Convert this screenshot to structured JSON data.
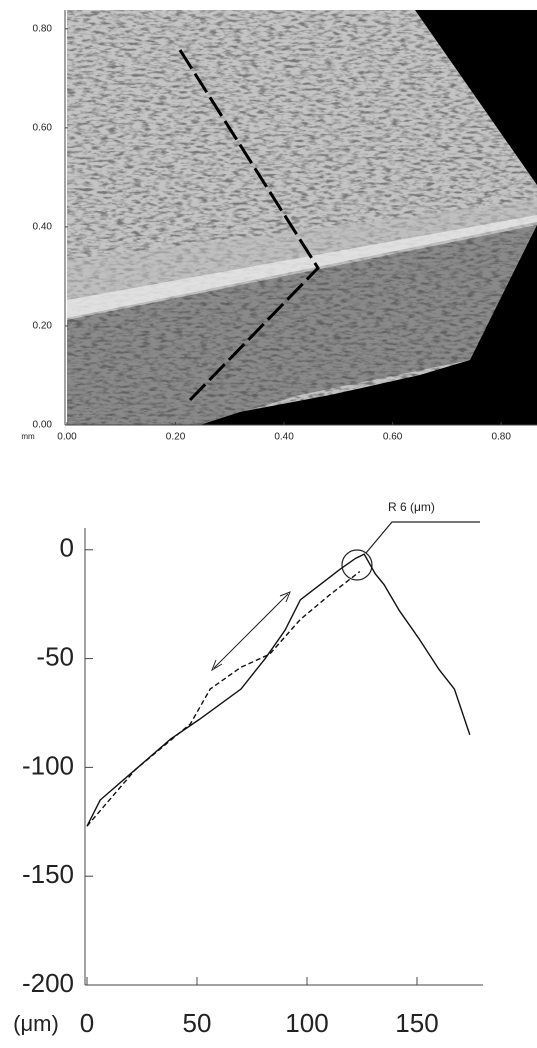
{
  "chart_data": [
    {
      "type": "image",
      "x_unit": "mm",
      "xlim": [
        0,
        0.866
      ],
      "ylim": [
        0,
        0.838
      ],
      "xticks": [
        {
          "value": 0,
          "label": "0.00"
        },
        {
          "value": 0.2,
          "label": "0.20"
        },
        {
          "value": 0.4,
          "label": "0.40"
        },
        {
          "value": 0.6,
          "label": "0.60"
        },
        {
          "value": 0.8,
          "label": "0.80"
        }
      ],
      "yticks": [
        {
          "value": 0,
          "label": "0.00"
        },
        {
          "value": 0.2,
          "label": "0.20"
        },
        {
          "value": 0.4,
          "label": "0.40"
        },
        {
          "value": 0.6,
          "label": "0.60"
        },
        {
          "value": 0.8,
          "label": "0.80"
        }
      ]
    },
    {
      "type": "line",
      "x_unit": "(μm)",
      "annotation": "R 6 (μm)",
      "xlim": [
        0,
        180
      ],
      "ylim": [
        -200,
        10
      ],
      "xticks": [
        0,
        50,
        100,
        150
      ],
      "yticks": [
        0,
        -50,
        -100,
        -150,
        -200
      ],
      "series": [
        {
          "color": "#111",
          "dash": false,
          "x": [
            0,
            6,
            22,
            38,
            51,
            70,
            81,
            90,
            97,
            106,
            115,
            122,
            126,
            131,
            135,
            142,
            151,
            160,
            167,
            174
          ],
          "values": [
            -127,
            -115,
            -101,
            -87,
            -78,
            -64,
            -50,
            -37,
            -23,
            -16,
            -9,
            -4,
            -2,
            -11,
            -16,
            -28,
            -41,
            -55,
            -64,
            -85
          ]
        },
        {
          "color": "#111",
          "dash": true,
          "x": [
            0,
            22,
            47,
            56,
            70,
            83,
            97,
            110,
            124
          ],
          "values": [
            -127,
            -101,
            -80,
            -64,
            -54,
            -48,
            -32,
            -21,
            -10
          ]
        }
      ]
    }
  ]
}
